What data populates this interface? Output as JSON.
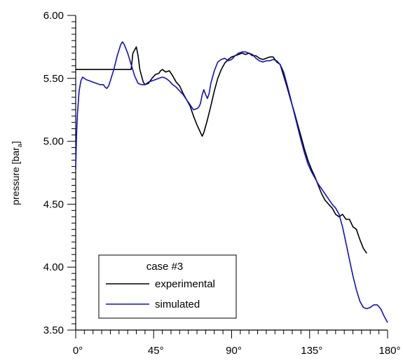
{
  "chart_data": {
    "type": "line",
    "title": "",
    "xlabel": "",
    "ylabel": "pressure [bar",
    "ylabel_subscript": "a",
    "ylabel_close": "]",
    "xlim": [
      0,
      180
    ],
    "ylim": [
      3.5,
      6.0
    ],
    "x_ticks": [
      0,
      45,
      90,
      135,
      180
    ],
    "x_tick_labels": [
      "0°",
      "45°",
      "90°",
      "135°",
      "180°"
    ],
    "y_ticks": [
      3.5,
      4.0,
      4.5,
      5.0,
      5.5,
      6.0
    ],
    "y_tick_labels": [
      "3.50",
      "4.00",
      "4.50",
      "5.00",
      "5.50",
      "6.00"
    ],
    "grid": false,
    "legend": {
      "title": "case #3",
      "placement": "bottom-left",
      "entries": [
        "experimental",
        "simulated"
      ]
    },
    "series": [
      {
        "name": "experimental",
        "color": "#000000",
        "points": [
          [
            0,
            5.57
          ],
          [
            12,
            5.57
          ],
          [
            24,
            5.57
          ],
          [
            32,
            5.57
          ],
          [
            33,
            5.7
          ],
          [
            35,
            5.75
          ],
          [
            36,
            5.68
          ],
          [
            37,
            5.57
          ],
          [
            38,
            5.52
          ],
          [
            39,
            5.47
          ],
          [
            40,
            5.45
          ],
          [
            42,
            5.46
          ],
          [
            44,
            5.5
          ],
          [
            46,
            5.53
          ],
          [
            48,
            5.54
          ],
          [
            49,
            5.56
          ],
          [
            50,
            5.57
          ],
          [
            52,
            5.55
          ],
          [
            54,
            5.56
          ],
          [
            56,
            5.52
          ],
          [
            58,
            5.47
          ],
          [
            60,
            5.44
          ],
          [
            62,
            5.38
          ],
          [
            64,
            5.33
          ],
          [
            66,
            5.28
          ],
          [
            68,
            5.2
          ],
          [
            70,
            5.13
          ],
          [
            72,
            5.07
          ],
          [
            73,
            5.04
          ],
          [
            74,
            5.07
          ],
          [
            76,
            5.17
          ],
          [
            78,
            5.28
          ],
          [
            80,
            5.4
          ],
          [
            82,
            5.5
          ],
          [
            84,
            5.57
          ],
          [
            86,
            5.62
          ],
          [
            88,
            5.65
          ],
          [
            90,
            5.67
          ],
          [
            92,
            5.68
          ],
          [
            94,
            5.69
          ],
          [
            96,
            5.7
          ],
          [
            98,
            5.69
          ],
          [
            100,
            5.7
          ],
          [
            102,
            5.68
          ],
          [
            104,
            5.68
          ],
          [
            106,
            5.66
          ],
          [
            108,
            5.65
          ],
          [
            110,
            5.66
          ],
          [
            112,
            5.67
          ],
          [
            114,
            5.67
          ],
          [
            116,
            5.63
          ],
          [
            118,
            5.61
          ],
          [
            120,
            5.52
          ],
          [
            122,
            5.43
          ],
          [
            124,
            5.33
          ],
          [
            126,
            5.24
          ],
          [
            128,
            5.14
          ],
          [
            130,
            5.04
          ],
          [
            132,
            4.94
          ],
          [
            134,
            4.85
          ],
          [
            136,
            4.78
          ],
          [
            138,
            4.72
          ],
          [
            140,
            4.65
          ],
          [
            142,
            4.58
          ],
          [
            144,
            4.53
          ],
          [
            146,
            4.5
          ],
          [
            148,
            4.47
          ],
          [
            150,
            4.42
          ],
          [
            152,
            4.4
          ],
          [
            154,
            4.42
          ],
          [
            156,
            4.38
          ],
          [
            158,
            4.38
          ],
          [
            160,
            4.32
          ],
          [
            162,
            4.3
          ],
          [
            164,
            4.22
          ],
          [
            166,
            4.15
          ],
          [
            168,
            4.11
          ]
        ]
      },
      {
        "name": "simulated",
        "color": "#1010cc",
        "points": [
          [
            0,
            4.78
          ],
          [
            0.5,
            5.05
          ],
          [
            1,
            5.22
          ],
          [
            2,
            5.4
          ],
          [
            3,
            5.48
          ],
          [
            4,
            5.51
          ],
          [
            6,
            5.49
          ],
          [
            8,
            5.48
          ],
          [
            10,
            5.47
          ],
          [
            12,
            5.46
          ],
          [
            14,
            5.45
          ],
          [
            16,
            5.45
          ],
          [
            17,
            5.43
          ],
          [
            18,
            5.42
          ],
          [
            19,
            5.44
          ],
          [
            20,
            5.48
          ],
          [
            22,
            5.57
          ],
          [
            24,
            5.68
          ],
          [
            26,
            5.77
          ],
          [
            27,
            5.79
          ],
          [
            28,
            5.77
          ],
          [
            30,
            5.7
          ],
          [
            32,
            5.61
          ],
          [
            34,
            5.52
          ],
          [
            36,
            5.46
          ],
          [
            38,
            5.45
          ],
          [
            40,
            5.45
          ],
          [
            42,
            5.47
          ],
          [
            44,
            5.48
          ],
          [
            46,
            5.49
          ],
          [
            48,
            5.5
          ],
          [
            50,
            5.51
          ],
          [
            52,
            5.5
          ],
          [
            54,
            5.48
          ],
          [
            56,
            5.45
          ],
          [
            58,
            5.43
          ],
          [
            60,
            5.4
          ],
          [
            62,
            5.37
          ],
          [
            64,
            5.33
          ],
          [
            66,
            5.29
          ],
          [
            67,
            5.27
          ],
          [
            68,
            5.25
          ],
          [
            70,
            5.26
          ],
          [
            71,
            5.27
          ],
          [
            72,
            5.3
          ],
          [
            73,
            5.37
          ],
          [
            74,
            5.41
          ],
          [
            75,
            5.37
          ],
          [
            76,
            5.34
          ],
          [
            77,
            5.38
          ],
          [
            78,
            5.46
          ],
          [
            80,
            5.56
          ],
          [
            82,
            5.63
          ],
          [
            84,
            5.65
          ],
          [
            86,
            5.66
          ],
          [
            88,
            5.64
          ],
          [
            90,
            5.65
          ],
          [
            92,
            5.68
          ],
          [
            94,
            5.7
          ],
          [
            96,
            5.71
          ],
          [
            98,
            5.71
          ],
          [
            100,
            5.7
          ],
          [
            102,
            5.69
          ],
          [
            104,
            5.66
          ],
          [
            106,
            5.64
          ],
          [
            108,
            5.63
          ],
          [
            110,
            5.64
          ],
          [
            112,
            5.64
          ],
          [
            114,
            5.65
          ],
          [
            116,
            5.64
          ],
          [
            118,
            5.61
          ],
          [
            120,
            5.55
          ],
          [
            122,
            5.45
          ],
          [
            124,
            5.34
          ],
          [
            126,
            5.23
          ],
          [
            128,
            5.12
          ],
          [
            130,
            5.01
          ],
          [
            132,
            4.91
          ],
          [
            134,
            4.82
          ],
          [
            136,
            4.76
          ],
          [
            138,
            4.71
          ],
          [
            140,
            4.66
          ],
          [
            142,
            4.62
          ],
          [
            144,
            4.58
          ],
          [
            146,
            4.54
          ],
          [
            148,
            4.5
          ],
          [
            150,
            4.47
          ],
          [
            152,
            4.42
          ],
          [
            154,
            4.32
          ],
          [
            156,
            4.19
          ],
          [
            158,
            4.06
          ],
          [
            160,
            3.93
          ],
          [
            162,
            3.82
          ],
          [
            164,
            3.73
          ],
          [
            166,
            3.68
          ],
          [
            168,
            3.67
          ],
          [
            170,
            3.68
          ],
          [
            172,
            3.7
          ],
          [
            174,
            3.7
          ],
          [
            176,
            3.67
          ],
          [
            178,
            3.61
          ],
          [
            180,
            3.56
          ]
        ]
      }
    ]
  }
}
